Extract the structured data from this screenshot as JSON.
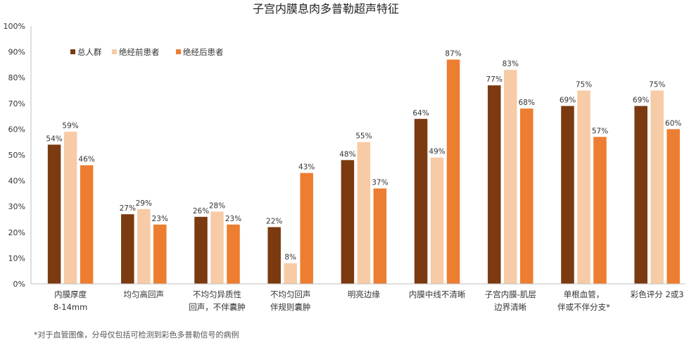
{
  "chart_data": {
    "type": "bar",
    "title": "子宫内膜息肉多普勒超声特征",
    "categories": [
      [
        "内膜厚度",
        "8-14mm"
      ],
      [
        "均匀高回声"
      ],
      [
        "不均匀异质性",
        "回声，不伴囊肿"
      ],
      [
        "不均匀回声",
        "伴规则囊肿"
      ],
      [
        "明亮边缘"
      ],
      [
        "内膜中线不清晰"
      ],
      [
        "子宫内膜-肌层",
        "边界清晰"
      ],
      [
        "单根血管，",
        "伴或不伴分支*"
      ],
      [
        "彩色评分 2或3"
      ]
    ],
    "series": [
      {
        "name": "总人群",
        "color": "#7b3a10",
        "values": [
          54,
          27,
          26,
          22,
          48,
          64,
          77,
          69,
          69
        ]
      },
      {
        "name": "绝经前患者",
        "color": "#f7cba6",
        "values": [
          59,
          29,
          28,
          8,
          55,
          49,
          83,
          75,
          75
        ]
      },
      {
        "name": "绝经后患者",
        "color": "#ed7d31",
        "values": [
          46,
          23,
          23,
          43,
          37,
          87,
          68,
          57,
          60
        ]
      }
    ],
    "value_suffix": "%",
    "ylim": [
      0,
      100
    ],
    "yticks": [
      "0%",
      "10%",
      "20%",
      "30%",
      "40%",
      "50%",
      "60%",
      "70%",
      "80%",
      "90%",
      "100%"
    ],
    "legend_position": "top-left",
    "grid": false
  },
  "footnote": "*对于血管图像，分母仅包括可检测到彩色多普勒信号的病例"
}
